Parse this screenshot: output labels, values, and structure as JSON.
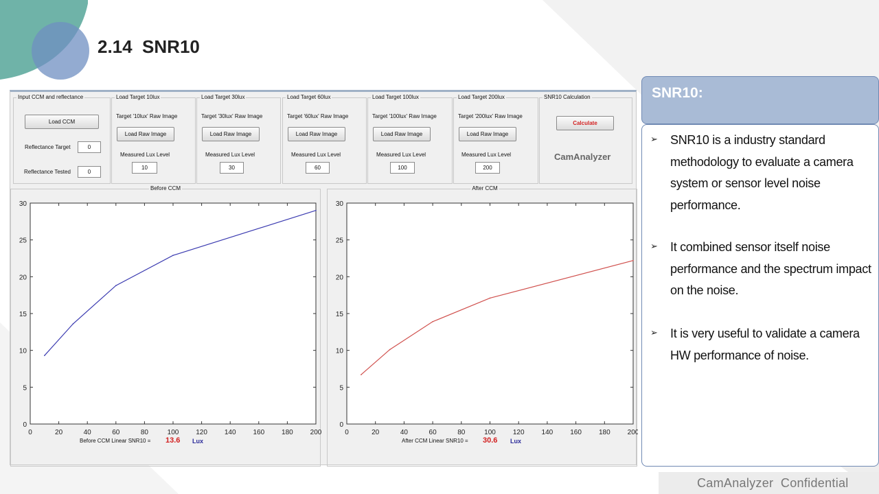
{
  "slide": {
    "title": "2.14  SNR10",
    "footer": "CamAnalyzer  Confidential",
    "colors": {
      "teal": "#6fb3a8",
      "blue": "#6f8fc2",
      "panel_header": "#a9bbd6"
    }
  },
  "app": {
    "ccm_group": {
      "title": "Input CCM and reflectance",
      "load_button": "Load CCM",
      "reflectance_target_label": "Reflectance Target",
      "reflectance_target_value": "0",
      "reflectance_tested_label": "Reflectance Tested",
      "reflectance_tested_value": "0"
    },
    "targets": [
      {
        "title": "Load Target 10lux",
        "raw_label": "Target '10lux' Raw Image",
        "button": "Load Raw Image",
        "lux_label": "Measured Lux Level",
        "lux_value": "10"
      },
      {
        "title": "Load Target 30lux",
        "raw_label": "Target '30lux' Raw Image",
        "button": "Load Raw Image",
        "lux_label": "Measured Lux Level",
        "lux_value": "30"
      },
      {
        "title": "Load Target 60lux",
        "raw_label": "Target '60lux' Raw Image",
        "button": "Load Raw Image",
        "lux_label": "Measured Lux Level",
        "lux_value": "60"
      },
      {
        "title": "Load Target 100lux",
        "raw_label": "Target '100lux' Raw Image",
        "button": "Load Raw Image",
        "lux_label": "Measured Lux Level",
        "lux_value": "100"
      },
      {
        "title": "Load Target 200lux",
        "raw_label": "Target '200lux' Raw Image",
        "button": "Load Raw Image",
        "lux_label": "Measured Lux Level",
        "lux_value": "200"
      }
    ],
    "calc_group": {
      "title": "SNR10 Calculation",
      "button": "Calculate",
      "brand": "CamAnalyzer"
    },
    "before": {
      "panel_title": "Before CCM",
      "result_label": "Before CCM Linear SNR10 =",
      "result_value": "13.6",
      "result_unit": "Lux"
    },
    "after": {
      "panel_title": "After CCM",
      "result_label": "After CCM Linear SNR10 =",
      "result_value": "30.6",
      "result_unit": "Lux"
    }
  },
  "chart_data": [
    {
      "type": "line",
      "x": [
        10,
        30,
        60,
        100,
        200
      ],
      "series": [
        {
          "values": [
            9.3,
            13.6,
            18.8,
            22.9,
            29.0
          ],
          "color": "#3a3ab0"
        }
      ],
      "xlim": [
        0,
        200
      ],
      "ylim": [
        0,
        30
      ],
      "xticks": [
        0,
        20,
        40,
        60,
        80,
        100,
        120,
        140,
        160,
        180,
        200
      ],
      "yticks": [
        0,
        5,
        10,
        15,
        20,
        25,
        30
      ],
      "grid": false
    },
    {
      "type": "line",
      "x": [
        10,
        30,
        60,
        100,
        200
      ],
      "series": [
        {
          "values": [
            6.7,
            10.1,
            13.9,
            17.1,
            22.2
          ],
          "color": "#d0504d"
        }
      ],
      "xlim": [
        0,
        200
      ],
      "ylim": [
        0,
        30
      ],
      "xticks": [
        0,
        20,
        40,
        60,
        80,
        100,
        120,
        140,
        160,
        180,
        200
      ],
      "yticks": [
        0,
        5,
        10,
        15,
        20,
        25,
        30
      ],
      "grid": false
    }
  ],
  "side_panel": {
    "header": "SNR10:",
    "bullet_glyph": "➢",
    "bullets": [
      "SNR10 is a industry standard methodology to evaluate a camera system or sensor level noise performance.",
      "It combined sensor itself noise performance and the spectrum impact on the noise.",
      "It is very useful to validate a camera HW performance of noise."
    ]
  }
}
